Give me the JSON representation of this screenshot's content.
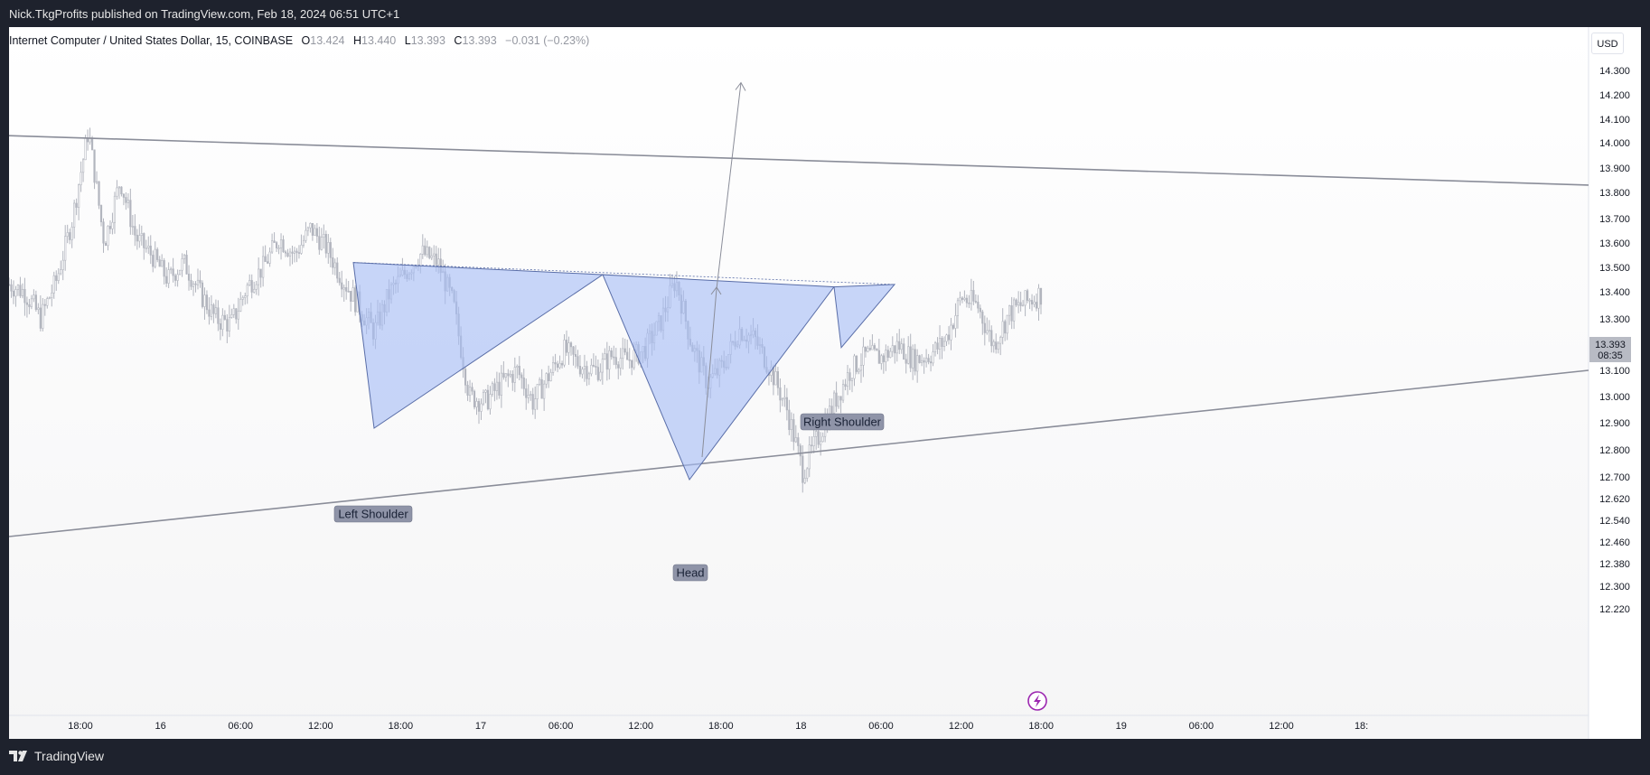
{
  "header": {
    "published_text": "Nick.TkgProfits published on TradingView.com, Feb 18, 2024 06:51 UTC+1"
  },
  "footer": {
    "brand": "TradingView",
    "logo_icon": "tradingview-logo-icon"
  },
  "legend": {
    "symbol_text": "Internet Computer / United States Dollar, 15, COINBASE",
    "open_label": "O",
    "open_value": "13.424",
    "high_label": "H",
    "high_value": "13.440",
    "low_label": "L",
    "low_value": "13.393",
    "close_label": "C",
    "close_value": "13.393",
    "change_text": "−0.031 (−0.23%)"
  },
  "currency_button": "USD",
  "price_badge": {
    "price": "13.393",
    "countdown": "08:35"
  },
  "colors": {
    "pattern_fill": "#a7bdf5",
    "pattern_stroke": "#5a6ea8",
    "trendline": "#8a8d99",
    "candle": "#b2b5be",
    "label_bg": "#8f94a8",
    "badge_bg": "#b8bbc4",
    "lightning": "#9c27b0"
  },
  "chart_data": {
    "type": "candlestick",
    "symbol": "Internet Computer / United States Dollar",
    "timeframe": "15",
    "exchange": "COINBASE",
    "currency": "USD",
    "y_axis_ticks": [
      "14.300",
      "14.200",
      "14.100",
      "14.000",
      "13.900",
      "13.800",
      "13.700",
      "13.600",
      "13.500",
      "13.400",
      "13.300",
      "13.200",
      "13.100",
      "13.000",
      "12.900",
      "12.800",
      "12.700",
      "12.620",
      "12.540",
      "12.460",
      "12.380",
      "12.300",
      "12.220"
    ],
    "x_axis_ticks": [
      "18:00",
      "16",
      "06:00",
      "12:00",
      "18:00",
      "17",
      "06:00",
      "12:00",
      "18:00",
      "18",
      "06:00",
      "12:00",
      "18:00",
      "19",
      "06:00",
      "12:00",
      "18:"
    ],
    "price_path": [
      13.43,
      13.4,
      13.3,
      13.45,
      13.7,
      14.05,
      13.6,
      13.85,
      13.62,
      13.55,
      13.45,
      13.52,
      13.4,
      13.3,
      13.28,
      13.42,
      13.5,
      13.62,
      13.55,
      13.66,
      13.58,
      13.45,
      13.35,
      13.25,
      13.4,
      13.48,
      13.56,
      13.52,
      13.35,
      13.0,
      12.98,
      13.05,
      13.1,
      12.98,
      13.08,
      13.18,
      13.12,
      13.1,
      13.16,
      13.14,
      13.18,
      13.28,
      13.45,
      13.2,
      13.05,
      13.12,
      13.26,
      13.22,
      13.1,
      12.95,
      12.72,
      12.85,
      12.98,
      13.1,
      13.16,
      13.15,
      13.2,
      13.14,
      13.16,
      13.22,
      13.38,
      13.35,
      13.2,
      13.32,
      13.36,
      13.393
    ],
    "pattern": {
      "left_shoulder": {
        "label": "Left Shoulder",
        "price": 12.88
      },
      "head": {
        "label": "Head",
        "price": 12.69
      },
      "right_shoulder": {
        "label": "Right Shoulder",
        "price": 13.19
      },
      "neckline_start": 13.52,
      "neckline_peak_1": 13.47,
      "neckline_peak_2": 13.42,
      "neckline_end": 13.43,
      "target_projection_price": 14.25
    },
    "channel_upper": {
      "start": 14.03,
      "end": 13.83
    },
    "channel_lower": {
      "start": 12.48,
      "end": 13.1
    },
    "last_price": 13.393,
    "last_candle_countdown": "08:35"
  }
}
